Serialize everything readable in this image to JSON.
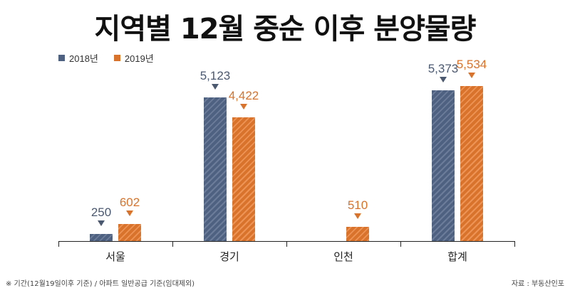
{
  "chart_data": {
    "type": "bar",
    "title": "지역별 12월 중순 이후 분양물량",
    "categories": [
      "서울",
      "경기",
      "인천",
      "합계"
    ],
    "series": [
      {
        "name": "2018년",
        "color": "#4f6180",
        "values": [
          250,
          5123,
          0,
          5373
        ],
        "labels": [
          "250",
          "5,123",
          "",
          "5,373"
        ]
      },
      {
        "name": "2019년",
        "color": "#d9722a",
        "values": [
          602,
          4422,
          510,
          5534
        ],
        "labels": [
          "602",
          "4,422",
          "510",
          "5,534"
        ]
      }
    ],
    "xlabel": "",
    "ylabel": "",
    "ylim": [
      0,
      5600
    ],
    "grid": false,
    "legend_position": "top-left"
  },
  "legend": {
    "s1": "2018년",
    "s2": "2019년"
  },
  "footer": {
    "left": "※ 기간(12월19일이후 기준) / 아파트 일반공급 기준(임대제외)",
    "right": "자료 : 부동산인포"
  }
}
